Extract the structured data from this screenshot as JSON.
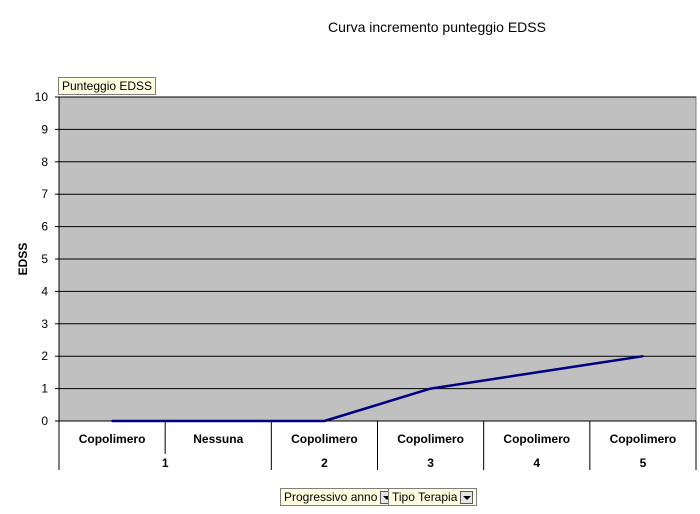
{
  "chart_data": {
    "type": "line",
    "title": "Curva incremento punteggio EDSS",
    "ylabel": "EDSS",
    "ylim": [
      0,
      10
    ],
    "yticks": [
      0,
      1,
      2,
      3,
      4,
      5,
      6,
      7,
      8,
      9,
      10
    ],
    "grid": true,
    "categories": [
      {
        "year": "1",
        "therapy": "Copolimero"
      },
      {
        "year": "1",
        "therapy": "Nessuna"
      },
      {
        "year": "2",
        "therapy": "Copolimero"
      },
      {
        "year": "3",
        "therapy": "Copolimero"
      },
      {
        "year": "4",
        "therapy": "Copolimero"
      },
      {
        "year": "5",
        "therapy": "Copolimero"
      }
    ],
    "year_groups": [
      {
        "label": "1",
        "span": 2
      },
      {
        "label": "2",
        "span": 1
      },
      {
        "label": "3",
        "span": 1
      },
      {
        "label": "4",
        "span": 1
      },
      {
        "label": "5",
        "span": 1
      }
    ],
    "series": [
      {
        "values": [
          0,
          0,
          0,
          1,
          1.5,
          2
        ],
        "color": "#000080"
      }
    ],
    "plot_background": "#c0c0c0"
  },
  "pivot": {
    "data_field": "Punteggio EDSS",
    "row_fields": [
      "Progressivo anno",
      "Tipo Terapia"
    ]
  }
}
